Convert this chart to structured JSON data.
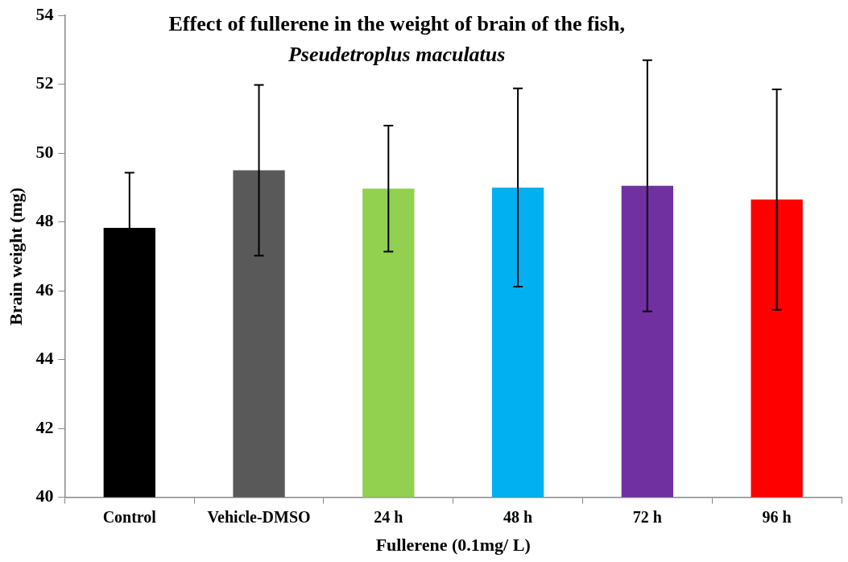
{
  "chart_data": {
    "type": "bar",
    "title": "Effect of fullerene in the weight of brain of the fish,",
    "subtitle": "Pseudetroplus maculatus",
    "xlabel": "Fullerene (0.1mg/ L)",
    "ylabel": "Brain weight (mg)",
    "categories": [
      "Control",
      "Vehicle-DMSO",
      "24 h",
      "48 h",
      "72 h",
      "96 h"
    ],
    "values": [
      47.83,
      49.5,
      48.97,
      49.0,
      49.05,
      48.65
    ],
    "errors": [
      1.6,
      2.48,
      1.83,
      2.88,
      3.65,
      3.2
    ],
    "colors": [
      "#000000",
      "#595959",
      "#92d050",
      "#00b0f0",
      "#7030a0",
      "#ff0000"
    ],
    "ylim": [
      40,
      54
    ],
    "yticks": [
      40,
      42,
      44,
      46,
      48,
      50,
      52,
      54
    ],
    "legend": false
  }
}
